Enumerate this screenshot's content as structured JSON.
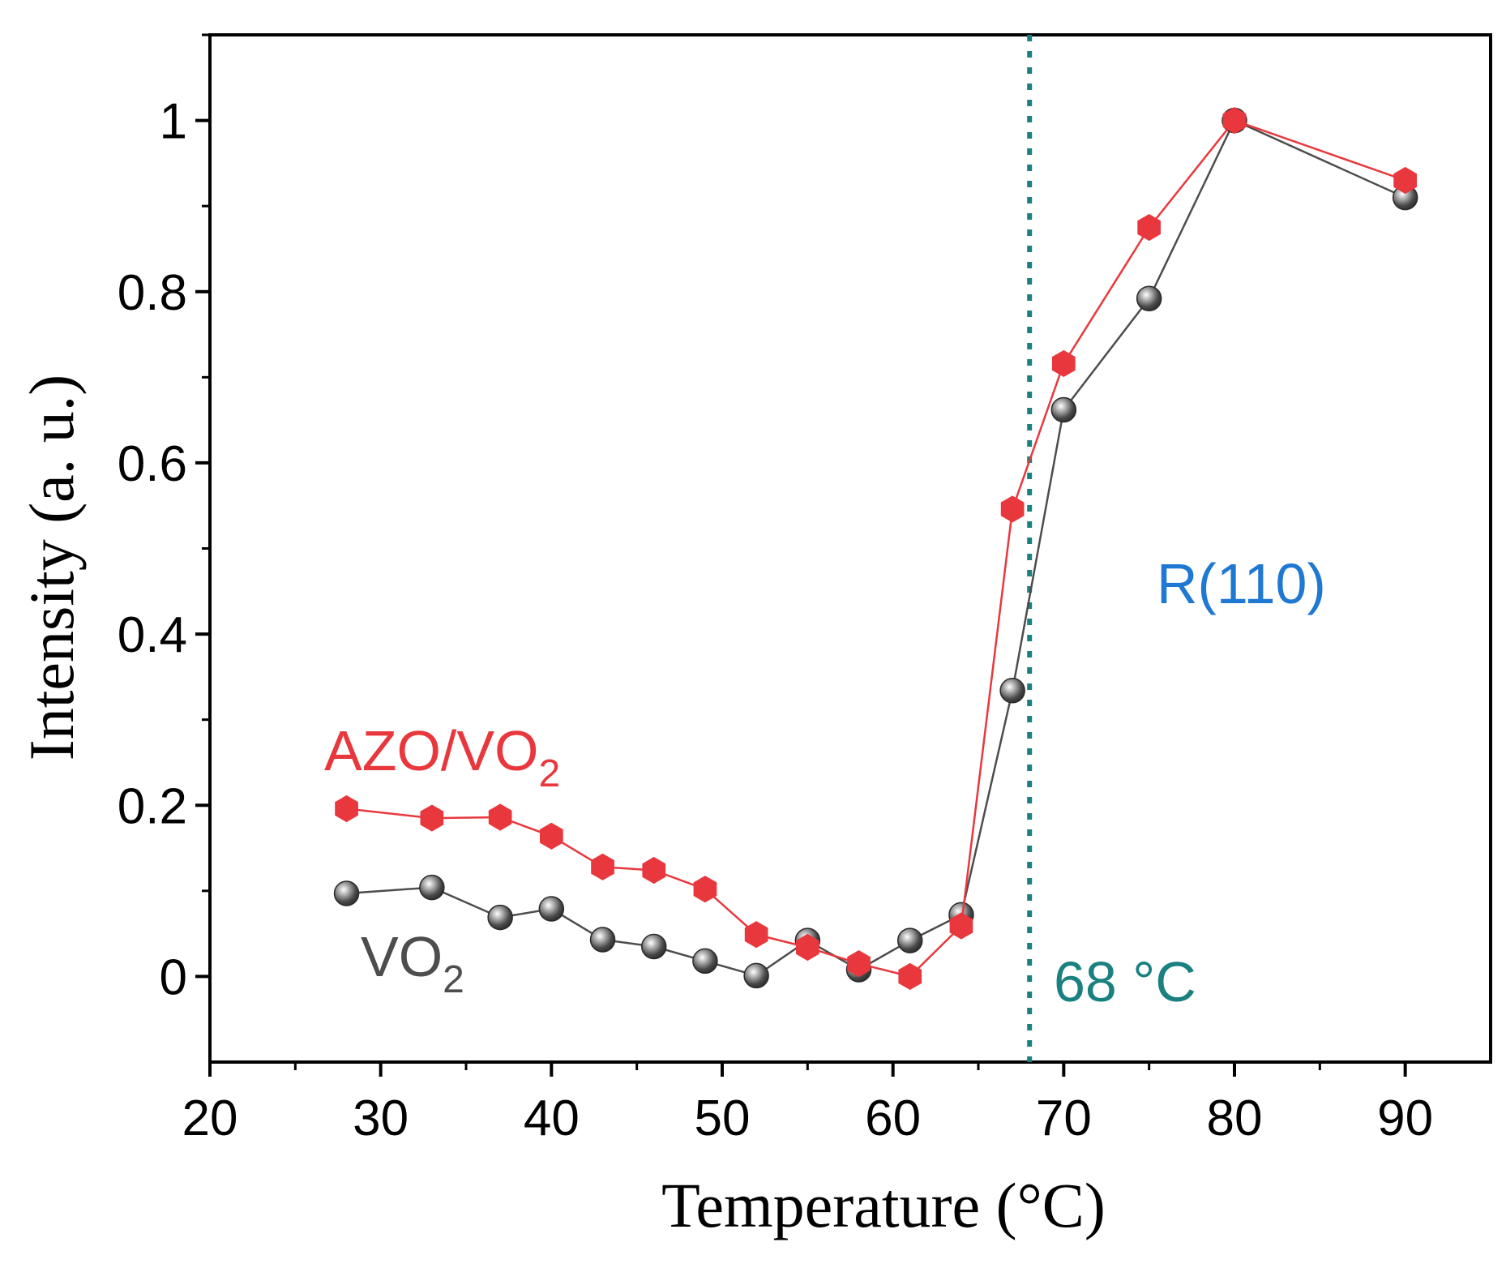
{
  "chart_data": {
    "type": "line",
    "title": "",
    "xlabel": "Temperature (°C)",
    "ylabel": "Intensity (a. u.)",
    "xlim": [
      20,
      95
    ],
    "ylim": [
      -0.1,
      1.1
    ],
    "x_ticks": [
      20,
      30,
      40,
      50,
      60,
      70,
      80,
      90
    ],
    "x_tick_labels": [
      "20",
      "30",
      "40",
      "50",
      "60",
      "70",
      "80",
      "90"
    ],
    "y_ticks": [
      0,
      0.2,
      0.4,
      0.6,
      0.8,
      1
    ],
    "y_tick_labels": [
      "0",
      "0.2",
      "0.4",
      "0.6",
      "0.8",
      "1"
    ],
    "grid": false,
    "series": [
      {
        "name": "VO2",
        "color": "#4d4d4d",
        "marker": "sphere",
        "x": [
          28,
          33,
          37,
          40,
          43,
          46,
          49,
          52,
          55,
          58,
          61,
          64,
          67,
          70,
          75,
          80,
          90
        ],
        "values": [
          0.097,
          0.104,
          0.069,
          0.079,
          0.043,
          0.035,
          0.018,
          0.001,
          0.042,
          0.008,
          0.042,
          0.072,
          0.334,
          0.662,
          0.792,
          1.0,
          0.91
        ]
      },
      {
        "name": "AZO/VO2",
        "color": "#e8383d",
        "marker": "hexagon",
        "x": [
          28,
          33,
          37,
          40,
          43,
          46,
          49,
          52,
          55,
          58,
          61,
          64,
          67,
          70,
          75,
          80,
          90
        ],
        "values": [
          0.196,
          0.185,
          0.186,
          0.164,
          0.128,
          0.124,
          0.102,
          0.049,
          0.034,
          0.015,
          0.0,
          0.059,
          0.546,
          0.716,
          0.875,
          1.0,
          0.93
        ]
      }
    ],
    "vline": {
      "x": 68,
      "color": "#1a8080",
      "style": "dotted"
    },
    "annotations": {
      "azo_label": {
        "main": "AZO/VO",
        "sub": "2",
        "color": "#e8383d"
      },
      "vo2_label": {
        "main": "VO",
        "sub": "2",
        "color": "#4d4d4d"
      },
      "peak_label": {
        "text": "R(110)",
        "color": "#1f78d1"
      },
      "temp_label": {
        "text": "68 °C",
        "color": "#1a8080"
      }
    }
  }
}
